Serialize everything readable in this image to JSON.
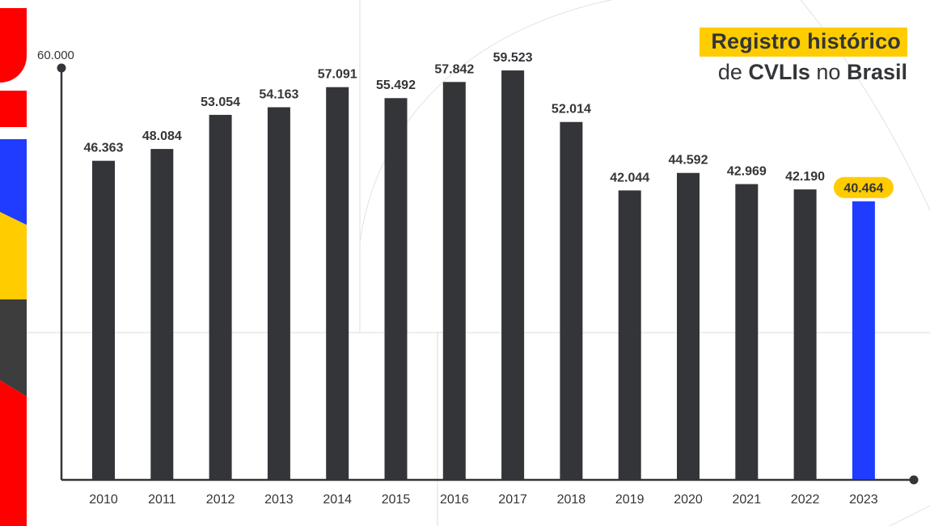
{
  "title": {
    "line1": "Registro histórico",
    "line2_prefix": "de ",
    "line2_bold1": "CVLIs",
    "line2_mid": " no ",
    "line2_bold2": "Brasil"
  },
  "colors": {
    "bar": "#333538",
    "highlight_bar": "#1f3cff",
    "highlight_label_bg": "#ffcc00",
    "accent_red": "#ff0000",
    "accent_blue": "#1f3cff",
    "accent_yellow": "#ffcc00",
    "accent_dark": "#3d3d3d"
  },
  "chart_data": {
    "type": "bar",
    "title": "Registro histórico de CVLIs no Brasil",
    "categories": [
      "2010",
      "2011",
      "2012",
      "2013",
      "2014",
      "2015",
      "2016",
      "2017",
      "2018",
      "2019",
      "2020",
      "2021",
      "2022",
      "2023"
    ],
    "values": [
      46363,
      48084,
      53054,
      54163,
      57091,
      55492,
      57842,
      59523,
      52014,
      42044,
      44592,
      42969,
      42190,
      40464
    ],
    "value_labels": [
      "46.363",
      "48.084",
      "53.054",
      "54.163",
      "57.091",
      "55.492",
      "57.842",
      "59.523",
      "52.014",
      "42.044",
      "44.592",
      "42.969",
      "42.190",
      "40.464"
    ],
    "highlight_index": 13,
    "ylim": [
      0,
      60000
    ],
    "y_tick_label": "60.000",
    "xlabel": "",
    "ylabel": ""
  }
}
